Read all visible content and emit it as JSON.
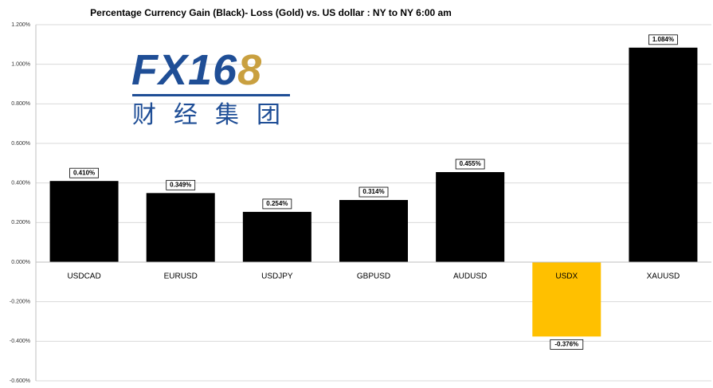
{
  "chart_data": {
    "type": "bar",
    "title": "Percentage Currency  Gain (Black)- Loss (Gold)  vs. US dollar :  NY  to  NY 6:00 am",
    "categories": [
      "USDCAD",
      "EURUSD",
      "USDJPY",
      "GBPUSD",
      "AUDUSD",
      "USDX",
      "XAUUSD"
    ],
    "values": [
      0.41,
      0.349,
      0.254,
      0.314,
      0.455,
      -0.376,
      1.084
    ],
    "value_labels": [
      "0.410%",
      "0.349%",
      "0.254%",
      "0.314%",
      "0.455%",
      "-0.376%",
      "1.084%"
    ],
    "colors": [
      "#000000",
      "#000000",
      "#000000",
      "#000000",
      "#000000",
      "#ffc000",
      "#000000"
    ],
    "ylim": [
      -0.6,
      1.2
    ],
    "yticks": [
      {
        "value": -0.6,
        "label": "-0.600%"
      },
      {
        "value": -0.4,
        "label": "-0.400%"
      },
      {
        "value": -0.2,
        "label": "-0.200%"
      },
      {
        "value": 0,
        "label": "0.000%"
      },
      {
        "value": 0.2,
        "label": "0.200%"
      },
      {
        "value": 0.4,
        "label": "0.400%"
      },
      {
        "value": 0.6,
        "label": "0.600%"
      },
      {
        "value": 0.8,
        "label": "0.800%"
      },
      {
        "value": 1.0,
        "label": "1.000%"
      },
      {
        "value": 1.2,
        "label": "1.200%"
      }
    ],
    "grid": true,
    "logo": {
      "text": "FX16",
      "accent": "8",
      "tagline": "财经集团"
    }
  }
}
